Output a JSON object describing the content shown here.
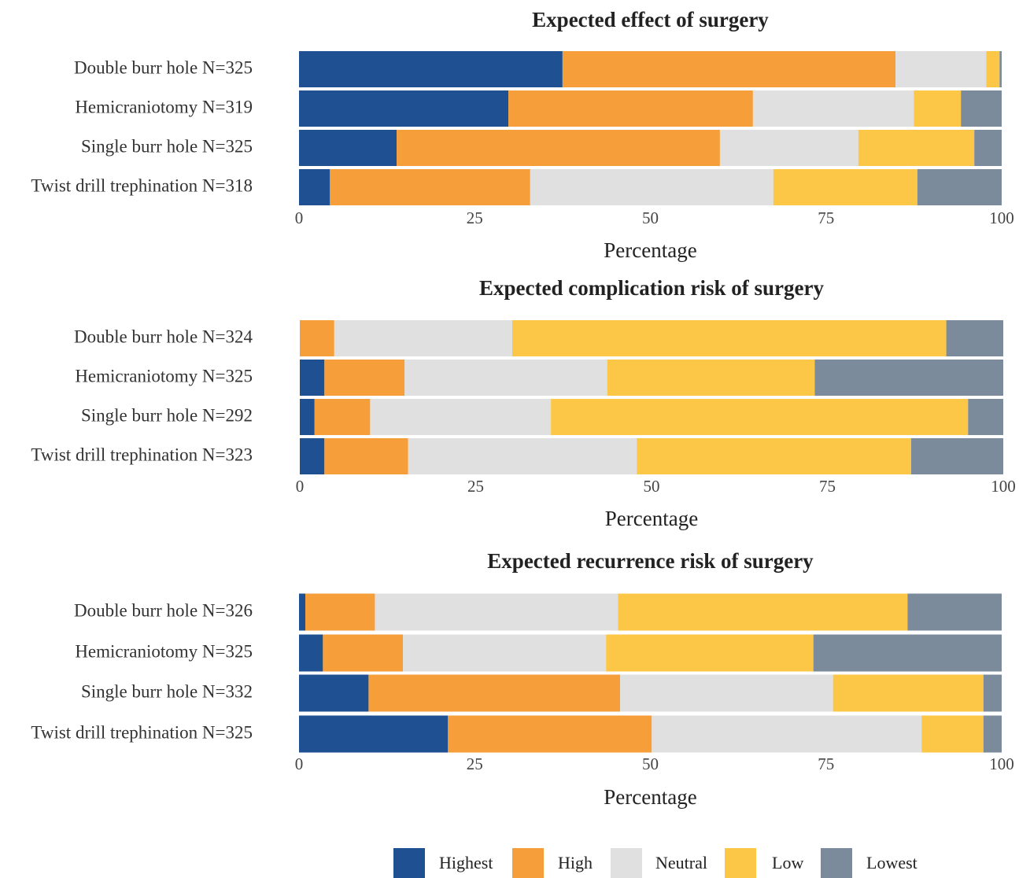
{
  "chart_data": [
    {
      "type": "stacked-bar",
      "title": "Expected effect of surgery",
      "x_label": "Percentage",
      "categories": [
        "Double burr hole N=325",
        "Hemicraniotomy N=319",
        "Single burr hole N=325",
        "Twist drill trephination N=318"
      ],
      "series": [
        {
          "values": [
            37.5,
            29.8,
            13.9,
            4.4
          ]
        },
        {
          "values": [
            47.4,
            34.8,
            46.0,
            28.5
          ]
        },
        {
          "values": [
            12.9,
            22.9,
            19.7,
            34.6
          ]
        },
        {
          "values": [
            1.9,
            6.7,
            16.5,
            20.5
          ]
        },
        {
          "values": [
            0.3,
            5.8,
            3.9,
            12.0
          ]
        }
      ],
      "xlim": [
        0,
        100
      ],
      "xticks": [
        0,
        25,
        50,
        75,
        100
      ]
    },
    {
      "type": "stacked-bar",
      "title": "Expected complication risk of surgery",
      "x_label": "Percentage",
      "categories": [
        "Double burr hole N=324",
        "Hemicraniotomy N=325",
        "Single burr hole N=292",
        "Twist drill trephination N=323"
      ],
      "series": [
        {
          "values": [
            0,
            3.5,
            2.1,
            3.5
          ]
        },
        {
          "values": [
            4.9,
            11.4,
            7.9,
            11.9
          ]
        },
        {
          "values": [
            25.3,
            28.8,
            25.7,
            32.5
          ]
        },
        {
          "values": [
            61.7,
            29.5,
            59.3,
            39.0
          ]
        },
        {
          "values": [
            8.1,
            26.8,
            5.0,
            13.1
          ]
        }
      ],
      "xlim": [
        0,
        100
      ],
      "xticks": [
        0,
        25,
        50,
        75,
        100
      ]
    },
    {
      "type": "stacked-bar",
      "title": "Expected recurrence risk of surgery",
      "x_label": "Percentage",
      "categories": [
        "Double burr hole N=326",
        "Hemicraniotomy N=325",
        "Single burr hole N=332",
        "Twist drill trephination N=325"
      ],
      "series": [
        {
          "values": [
            0.9,
            3.4,
            9.9,
            21.2
          ]
        },
        {
          "values": [
            9.9,
            11.4,
            35.8,
            29.0
          ]
        },
        {
          "values": [
            34.6,
            28.9,
            30.3,
            38.4
          ]
        },
        {
          "values": [
            41.2,
            29.5,
            21.4,
            8.8
          ]
        },
        {
          "values": [
            13.4,
            26.8,
            2.6,
            2.6
          ]
        }
      ],
      "xlim": [
        0,
        100
      ],
      "xticks": [
        0,
        25,
        50,
        75,
        100
      ]
    }
  ],
  "legend": {
    "names": [
      "Highest",
      "High",
      "Neutral",
      "Low",
      "Lowest"
    ],
    "colors": [
      "#1f5192",
      "#f59e3a",
      "#e0e0e0",
      "#fcc646",
      "#7b8b9c"
    ]
  }
}
